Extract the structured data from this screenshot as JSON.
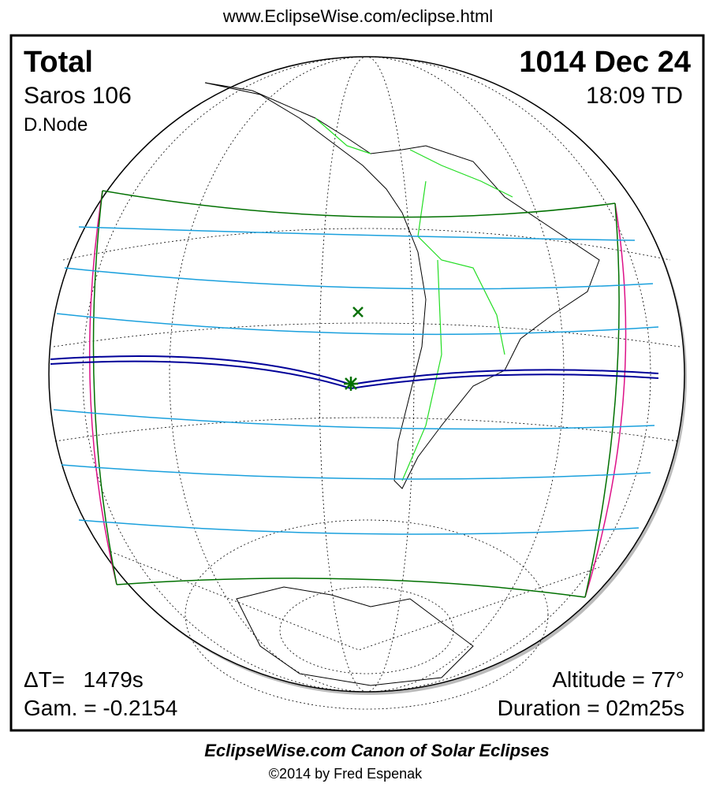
{
  "header": {
    "url": "www.EclipseWise.com/eclipse.html"
  },
  "panel": {
    "type": "Total",
    "saros": "Saros 106",
    "node": "D.Node",
    "date": "1014 Dec 24",
    "time": "18:09 TD",
    "delta_t": "ΔT=   1479s",
    "gamma": "Gam. = -0.2154",
    "altitude": "Altitude = 77°",
    "duration": "Duration = 02m25s"
  },
  "footer": {
    "title": "EclipseWise.com Canon of Solar Eclipses",
    "copyright": "©2014 by Fred Espenak"
  }
}
